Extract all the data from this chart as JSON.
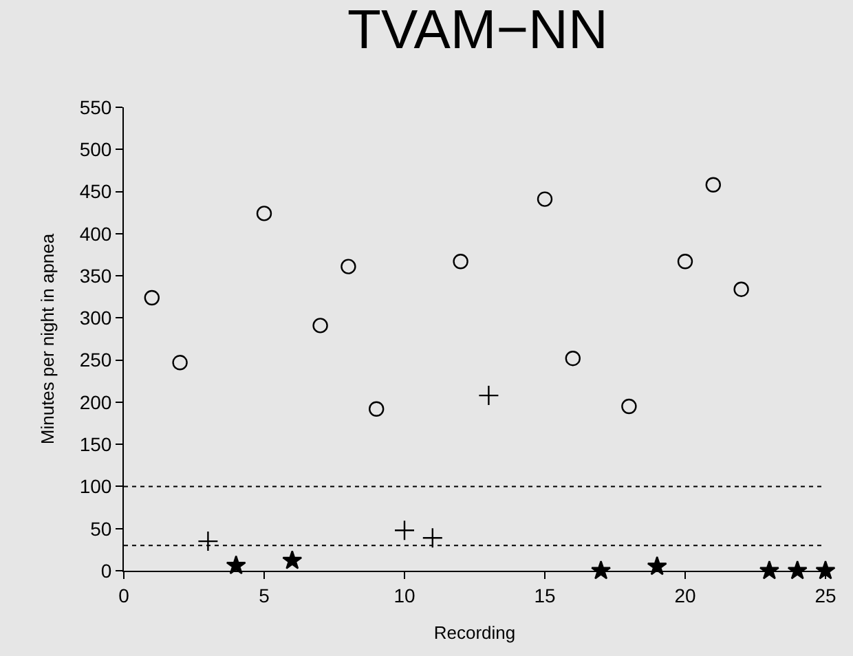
{
  "chart_data": {
    "type": "scatter",
    "title": "TVAM−NN",
    "xlabel": "Recording",
    "ylabel": "Minutes per night in apnea",
    "xlim": [
      0,
      25
    ],
    "xticks": [
      0,
      5,
      10,
      15,
      20,
      25
    ],
    "ylim": [
      0,
      550
    ],
    "yticks": [
      0,
      50,
      100,
      150,
      200,
      250,
      300,
      350,
      400,
      450,
      500,
      550
    ],
    "grid": false,
    "series": [
      {
        "color": "#000000",
        "marker": "circle",
        "x": [
          1,
          2,
          5,
          7,
          8,
          9,
          12,
          15,
          16,
          18,
          20,
          21,
          22
        ],
        "values": [
          324,
          247,
          424,
          291,
          361,
          192,
          367,
          441,
          252,
          195,
          367,
          458,
          334
        ]
      },
      {
        "color": "#000000",
        "marker": "cross",
        "x": [
          3,
          10,
          11,
          13
        ],
        "values": [
          35,
          48,
          39,
          208
        ]
      },
      {
        "color": "#000000",
        "marker": "star",
        "x": [
          4,
          6,
          17,
          19,
          23,
          24,
          25
        ],
        "values": [
          6,
          12,
          0,
          5,
          0,
          0,
          0
        ]
      }
    ],
    "ref_lines": [
      {
        "axis": "y",
        "value": 100,
        "color": "#000000",
        "line_style": "dotted"
      },
      {
        "axis": "y",
        "value": 30,
        "color": "#000000",
        "line_style": "dotted"
      }
    ]
  }
}
